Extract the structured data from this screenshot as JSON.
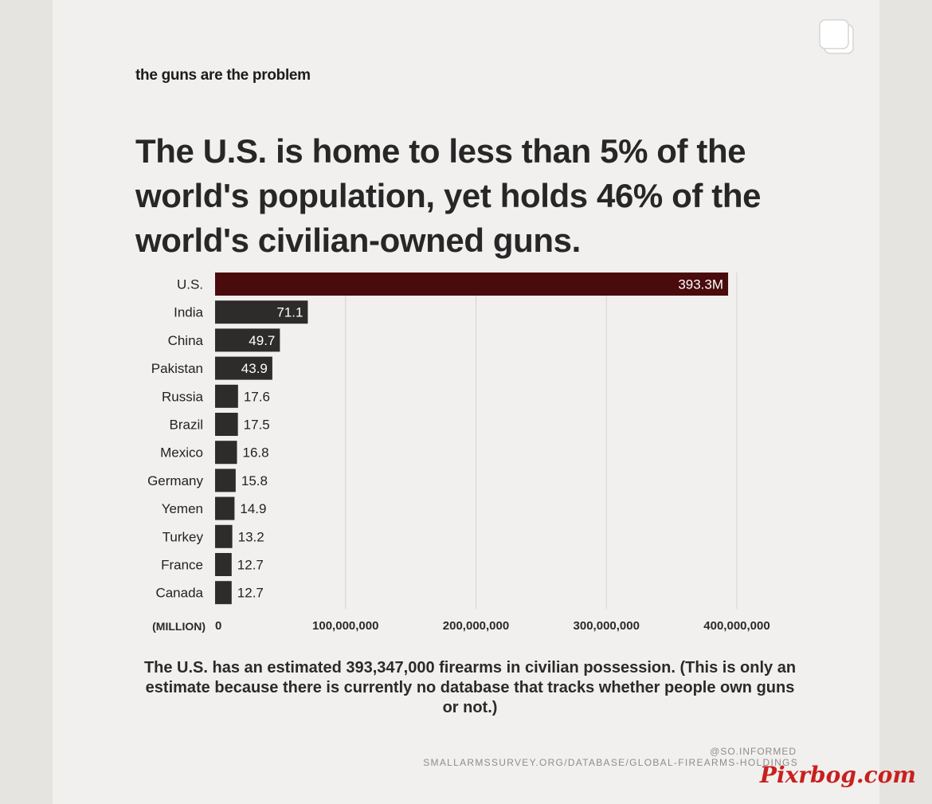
{
  "eyebrow": "the guns are the problem",
  "headline": "The U.S. is home to less than 5% of the world's population, yet holds 46% of the world's civilian-owned guns.",
  "footnote": "The U.S. has an estimated 393,347,000 firearms in civilian possession. (This is only an estimate because there is currently no database that tracks whether people own guns or not.)",
  "handle": "@SO.INFORMED",
  "source": "SMALLARMSSURVEY.ORG/DATABASE/GLOBAL-FIREARMS-HOLDINGS",
  "watermark": "Pixrbog.com",
  "icons": {
    "top_right": "copy-icon"
  },
  "colors": {
    "highlight_bar": "#4a0b0d",
    "bar": "#2e2b2b",
    "grid": "#d4d2cf"
  },
  "chart_data": {
    "type": "bar",
    "orientation": "horizontal",
    "title": "",
    "xlabel": "(MILLION)",
    "ylabel": "",
    "xlim": [
      0,
      400000000
    ],
    "xticks": [
      0,
      100000000,
      200000000,
      300000000,
      400000000
    ],
    "xtick_labels": [
      "0",
      "100,000,000",
      "200,000,000",
      "300,000,000",
      "400,000,000"
    ],
    "grid": true,
    "categories": [
      "U.S.",
      "India",
      "China",
      "Pakistan",
      "Russia",
      "Brazil",
      "Mexico",
      "Germany",
      "Yemen",
      "Turkey",
      "France",
      "Canada"
    ],
    "values": [
      393300000,
      71100000,
      49700000,
      43900000,
      17600000,
      17500000,
      16800000,
      15800000,
      14900000,
      13200000,
      12700000,
      12700000
    ],
    "value_labels": [
      "393.3M",
      "71.1",
      "49.7",
      "43.9",
      "17.6",
      "17.5",
      "16.8",
      "15.8",
      "14.9",
      "13.2",
      "12.7",
      "12.7"
    ],
    "highlight_index": 0
  }
}
